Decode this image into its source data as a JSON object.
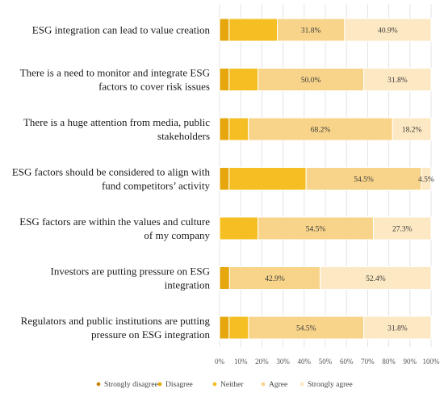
{
  "chart_data": {
    "type": "bar",
    "orientation": "horizontal",
    "stacked": true,
    "title": "",
    "xlabel": "",
    "ylabel": "",
    "xlim": [
      0,
      100
    ],
    "x_ticks": [
      "0%",
      "10%",
      "20%",
      "30%",
      "40%",
      "50%",
      "60%",
      "70%",
      "80%",
      "90%",
      "100%"
    ],
    "grid": true,
    "legend_position": "bottom",
    "categories": [
      "ESG integration can lead to value creation",
      "There is a need to monitor and integrate ESG factors to cover risk issues",
      "There is a huge attention from media, public stakeholders",
      "ESG factors should be considered to align with fund competitors’ activity",
      "ESG factors are within the values and culture of my company",
      "Investors are putting pressure on ESG integration",
      "Regulators and public institutions are putting pressure on ESG integration"
    ],
    "category_lines": [
      [
        "ESG integration can lead to value creation"
      ],
      [
        "There is a need to monitor and integrate ESG",
        "factors to cover risk issues"
      ],
      [
        "There is a huge attention from media, public",
        "stakeholders"
      ],
      [
        "ESG factors should be considered to align with",
        "fund competitors’ activity"
      ],
      [
        "ESG factors are within the values and culture",
        "of my company"
      ],
      [
        "Investors are putting pressure on ESG",
        "integration"
      ],
      [
        "Regulators and public institutions are putting",
        "pressure on ESG integration"
      ]
    ],
    "series": [
      {
        "name": "Strongly disagree",
        "color": "#C8860A",
        "values": [
          0,
          0,
          0,
          0,
          0,
          0,
          0
        ]
      },
      {
        "name": "Disagree",
        "color": "#E6A70C",
        "values": [
          4.5,
          4.5,
          4.5,
          4.5,
          0,
          4.7,
          4.5
        ]
      },
      {
        "name": "Neither",
        "color": "#F5BF24",
        "values": [
          22.8,
          13.7,
          9.1,
          36.4,
          18.2,
          0,
          9.2
        ]
      },
      {
        "name": "Agree",
        "color": "#F8D48A",
        "values": [
          31.8,
          50.0,
          68.2,
          54.5,
          54.5,
          42.9,
          54.5
        ]
      },
      {
        "name": "Strongly agree",
        "color": "#FCE8C2",
        "values": [
          40.9,
          31.8,
          18.2,
          4.5,
          27.3,
          52.4,
          31.8
        ]
      }
    ],
    "data_labels": [
      [
        "",
        "",
        "",
        "31.8%",
        "40.9%"
      ],
      [
        "",
        "",
        "",
        "50.0%",
        "31.8%"
      ],
      [
        "",
        "",
        "",
        "68.2%",
        "18.2%"
      ],
      [
        "",
        "",
        "",
        "54.5%",
        "4.5%"
      ],
      [
        "",
        "",
        "",
        "54.5%",
        "27.3%"
      ],
      [
        "",
        "",
        "",
        "42.9%",
        "52.4%"
      ],
      [
        "",
        "",
        "",
        "54.5%",
        "31.8%"
      ]
    ]
  }
}
